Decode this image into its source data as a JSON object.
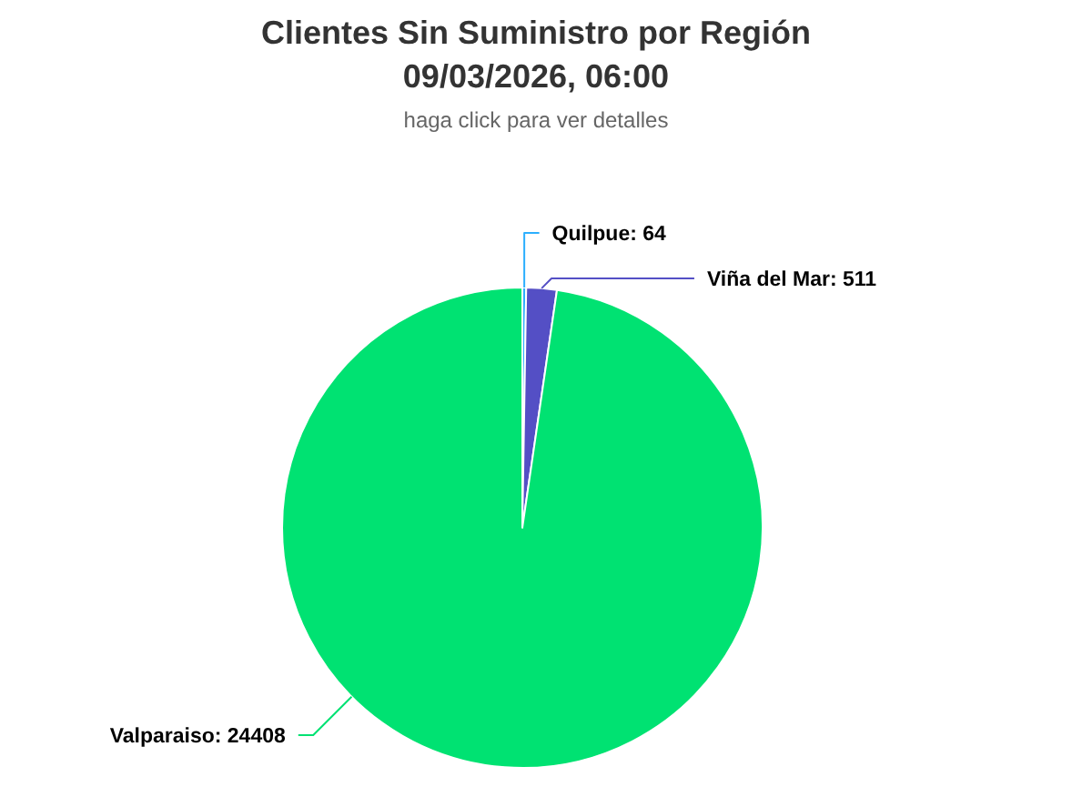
{
  "chart_data": {
    "type": "pie",
    "title": "Clientes Sin Suministro por Región\n09/03/2026, 06:00",
    "subtitle": "haga click para ver detalles",
    "values": [
      64,
      511,
      24408
    ],
    "value_labels": [
      "Quilpue: 64",
      "Viña del Mar: 511",
      "Valparaiso: 24408"
    ],
    "colors": [
      "#2caffe",
      "#544fc5",
      "#00e272"
    ]
  }
}
